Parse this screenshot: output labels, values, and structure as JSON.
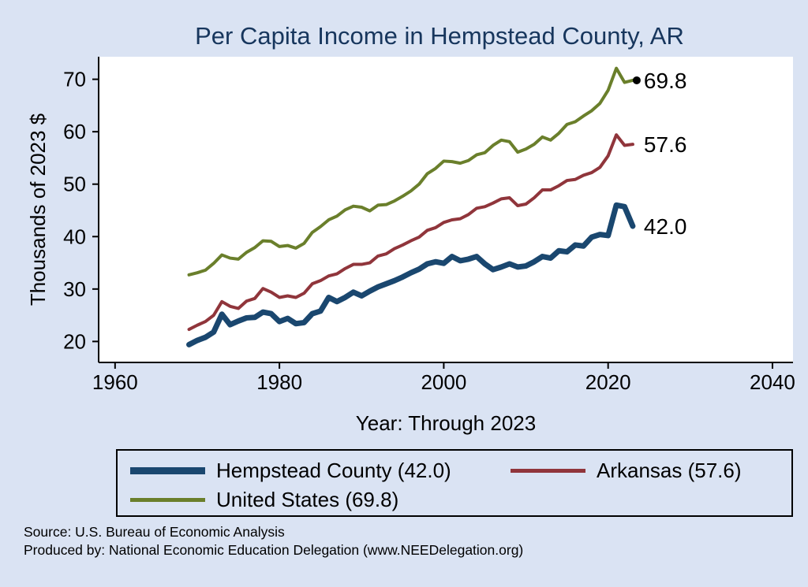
{
  "colors": {
    "background": "#dae3f3",
    "title": "#17365d",
    "axis": "#000000",
    "hempstead": "#1a476f",
    "arkansas": "#90353b",
    "united_states": "#6a7f2b"
  },
  "chart_data": {
    "type": "line",
    "title": "Per Capita Income in Hempstead County, AR",
    "xlabel": "Year: Through 2023",
    "ylabel": "Thousands of 2023 $",
    "grid": false,
    "legend_position": "bottom",
    "xlim": [
      1958,
      2042.5
    ],
    "ylim": [
      16,
      74.3
    ],
    "x_ticks": [
      1960,
      1980,
      2000,
      2020,
      2040
    ],
    "y_ticks": [
      20,
      30,
      40,
      50,
      60,
      70
    ],
    "x": [
      1969,
      1970,
      1971,
      1972,
      1973,
      1974,
      1975,
      1976,
      1977,
      1978,
      1979,
      1980,
      1981,
      1982,
      1983,
      1984,
      1985,
      1986,
      1987,
      1988,
      1989,
      1990,
      1991,
      1992,
      1993,
      1994,
      1995,
      1996,
      1997,
      1998,
      1999,
      2000,
      2001,
      2002,
      2003,
      2004,
      2005,
      2006,
      2007,
      2008,
      2009,
      2010,
      2011,
      2012,
      2013,
      2014,
      2015,
      2016,
      2017,
      2018,
      2019,
      2020,
      2021,
      2022,
      2023
    ],
    "series": [
      {
        "name": "Hempstead County",
        "color": "#1a476f",
        "line_width": 7,
        "end_label": "42.0",
        "end_marker": false,
        "values": [
          19.4,
          20.2,
          20.8,
          21.8,
          25.2,
          23.2,
          23.9,
          24.5,
          24.6,
          25.6,
          25.3,
          23.8,
          24.4,
          23.4,
          23.6,
          25.3,
          25.8,
          28.4,
          27.6,
          28.4,
          29.4,
          28.7,
          29.6,
          30.4,
          31.0,
          31.6,
          32.3,
          33.1,
          33.8,
          34.8,
          35.2,
          34.9,
          36.2,
          35.4,
          35.7,
          36.2,
          34.8,
          33.7,
          34.2,
          34.8,
          34.2,
          34.4,
          35.2,
          36.2,
          35.9,
          37.3,
          37.1,
          38.4,
          38.2,
          39.9,
          40.4,
          40.2,
          46.0,
          45.7,
          42.0
        ]
      },
      {
        "name": "Arkansas",
        "color": "#90353b",
        "line_width": 4,
        "end_label": "57.6",
        "end_marker": false,
        "values": [
          22.3,
          23.1,
          23.8,
          25.0,
          27.6,
          26.7,
          26.3,
          27.7,
          28.2,
          30.1,
          29.4,
          28.4,
          28.7,
          28.4,
          29.2,
          31.0,
          31.6,
          32.5,
          32.9,
          33.9,
          34.7,
          34.7,
          35.0,
          36.3,
          36.7,
          37.7,
          38.4,
          39.2,
          39.9,
          41.2,
          41.7,
          42.7,
          43.2,
          43.4,
          44.2,
          45.4,
          45.7,
          46.4,
          47.2,
          47.4,
          45.9,
          46.2,
          47.4,
          48.9,
          48.9,
          49.7,
          50.7,
          50.9,
          51.7,
          52.2,
          53.2,
          55.4,
          59.4,
          57.4,
          57.6
        ]
      },
      {
        "name": "United States",
        "color": "#6a7f2b",
        "line_width": 4,
        "end_label": "69.8",
        "end_marker": true,
        "values": [
          32.7,
          33.1,
          33.6,
          34.9,
          36.5,
          35.9,
          35.7,
          37.0,
          37.9,
          39.2,
          39.1,
          38.1,
          38.3,
          37.8,
          38.7,
          40.8,
          41.9,
          43.2,
          43.9,
          45.1,
          45.8,
          45.6,
          44.9,
          46.0,
          46.1,
          46.8,
          47.7,
          48.7,
          50.0,
          52.0,
          53.0,
          54.4,
          54.3,
          54.0,
          54.5,
          55.6,
          56.0,
          57.4,
          58.4,
          58.1,
          56.1,
          56.7,
          57.6,
          59.0,
          58.4,
          59.7,
          61.4,
          61.9,
          63.0,
          64.0,
          65.4,
          67.9,
          72.1,
          69.4,
          69.8
        ]
      }
    ]
  },
  "legend": {
    "items": [
      {
        "label": "Hempstead County (42.0)",
        "color": "#1a476f"
      },
      {
        "label": "Arkansas (57.6)",
        "color": "#90353b"
      },
      {
        "label": "United States (69.8)",
        "color": "#6a7f2b"
      }
    ]
  },
  "footer": {
    "source": "Source: U.S. Bureau of Economic Analysis",
    "produced_by": "Produced by: National Economic Education Delegation (www.NEEDelegation.org)"
  }
}
